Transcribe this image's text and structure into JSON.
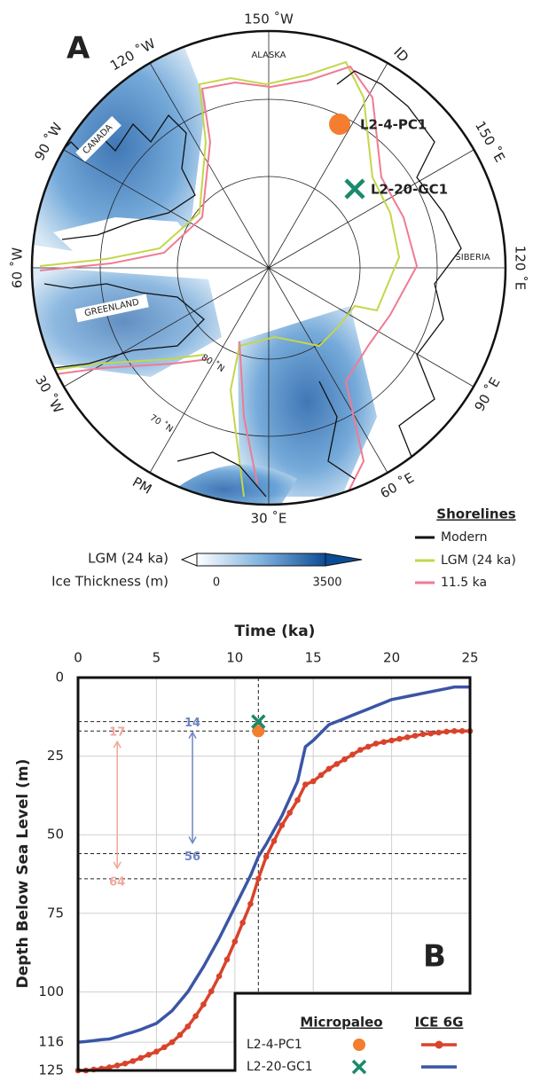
{
  "map": {
    "panel": "A",
    "longitudes": [
      "150 ˚W",
      "120 ˚W",
      "90 ˚W",
      "60 ˚W",
      "30 ˚W",
      "PM",
      "30 ˚E",
      "60 ˚E",
      "90 ˚E",
      "120 ˚E",
      "150 ˚E",
      "ID"
    ],
    "latitudes": [
      "80 ˚N",
      "70 ˚N"
    ],
    "regions": [
      "ALASKA",
      "CANADA",
      "GREENLAND",
      "SIBERIA"
    ],
    "sites": [
      {
        "label": "L2-4-PC1"
      },
      {
        "label": "L2-20-GC1"
      }
    ],
    "colorbar": {
      "title": [
        "LGM (24 ka)",
        "Ice Thickness (m)"
      ],
      "ticks": [
        0,
        3500
      ]
    },
    "shorelines": {
      "title": "Shorelines",
      "items": [
        "Modern",
        "LGM (24 ka)",
        "11.5 ka"
      ]
    }
  },
  "chart_data": {
    "type": "line",
    "panel": "B",
    "xlabel": "Time (ka)",
    "ylabel": "Depth Below Sea Level (m)",
    "xlim": [
      0,
      25
    ],
    "xticks": [
      0,
      5,
      10,
      15,
      20,
      25
    ],
    "ylim": [
      0,
      125
    ],
    "yticks": [
      0,
      25,
      50,
      75,
      100,
      116,
      125
    ],
    "invert_y": true,
    "grid": true,
    "legend_titles": [
      "Micropaleo",
      "ICE 6G"
    ],
    "x": [
      0,
      0.5,
      1,
      1.5,
      2,
      2.5,
      3,
      3.5,
      4,
      4.5,
      5,
      5.5,
      6,
      6.5,
      7,
      7.5,
      8,
      8.5,
      9,
      9.5,
      10,
      10.5,
      11,
      11.5,
      12,
      12.5,
      13,
      13.5,
      14,
      14.5,
      15,
      15.5,
      16,
      16.5,
      17,
      17.5,
      18,
      18.5,
      19,
      19.5,
      20,
      20.5,
      21,
      21.5,
      22,
      22.5,
      23,
      23.5,
      24,
      24.5,
      25
    ],
    "series": [
      {
        "name": "L2-4-PC1",
        "color": "#d9432b",
        "dots": true,
        "values": [
          125,
          125,
          124.7,
          124.4,
          124,
          123.4,
          122.8,
          122,
          121,
          120,
          119,
          117.6,
          116,
          113.7,
          111,
          107.7,
          104,
          99.8,
          95,
          89.7,
          84,
          78,
          72,
          64,
          57,
          52,
          47,
          43,
          39,
          34,
          33,
          31,
          29,
          27.5,
          26,
          24.5,
          23,
          22,
          21,
          20.5,
          20,
          19.5,
          19,
          18.5,
          18,
          17.8,
          17.5,
          17.2,
          17,
          17,
          17
        ],
        "marker": {
          "x": 11.5,
          "y": 17,
          "shape": "circle",
          "color": "#f47d30"
        }
      },
      {
        "name": "L2-20-GC1",
        "color": "#3b55a6",
        "dots": false,
        "values": [
          116,
          115.8,
          115.5,
          115.2,
          115,
          114.3,
          113.5,
          112.8,
          112,
          111,
          110,
          108,
          106,
          103,
          100,
          96,
          92,
          87.5,
          83,
          78,
          73,
          68,
          63,
          57,
          53,
          48.5,
          44,
          38.5,
          33,
          22,
          20,
          17.5,
          15,
          14,
          13,
          12,
          11,
          10,
          9,
          8,
          7,
          6.5,
          6,
          5.5,
          5,
          4.5,
          4,
          3.5,
          3,
          3,
          3
        ],
        "marker": {
          "x": 11.5,
          "y": 14,
          "shape": "cross",
          "color": "#1a8a6b"
        }
      }
    ],
    "annotations": [
      {
        "x": 2.5,
        "from": 17,
        "to": 64,
        "color": "#f0a79a"
      },
      {
        "x": 7.3,
        "from": 14,
        "to": 56,
        "color": "#6f86c4"
      }
    ]
  }
}
